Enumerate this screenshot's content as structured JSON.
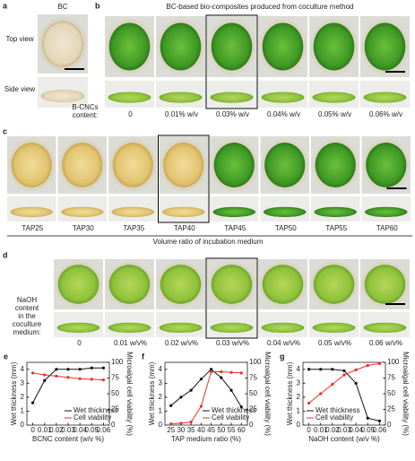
{
  "panel_a": {
    "label": "a",
    "title": "BC",
    "rows": [
      "Top view",
      "Side view"
    ]
  },
  "panel_b": {
    "label": "b",
    "title": "BC-based bio-composites produced from coculture method",
    "row_label": [
      "B-CNCs",
      "content:"
    ],
    "labels": [
      "0",
      "0.01% w/v",
      "0.03% w/v",
      "0.04% w/v",
      "0.05% w/v",
      "0.06% w/v"
    ]
  },
  "panel_c": {
    "label": "c",
    "labels": [
      "TAP25",
      "TAP30",
      "TAP35",
      "TAP40",
      "TAP45",
      "TAP50",
      "TAP55",
      "TAP60"
    ],
    "caption": "Volume ratio of incubation medium"
  },
  "panel_d": {
    "label": "d",
    "row_label": [
      "NaOH",
      "content",
      "in the",
      "coculture",
      "medium:"
    ],
    "labels": [
      "0",
      "0.01 w/v%",
      "0.02 w/v%",
      "0.03 w/v%",
      "0.04 w/v%",
      "0.05 w/v%",
      "0.06 w/v%"
    ]
  },
  "chart_data": [
    {
      "type": "line",
      "label": "e",
      "x_label": "BCNC content (w/v %)",
      "y_label": "Wet thickness (mm)",
      "y2_label": "Microalgal cell viability (%)",
      "x": [
        0,
        0.01,
        0.02,
        0.03,
        0.04,
        0.05,
        0.06
      ],
      "xlim": [
        -0.005,
        0.065
      ],
      "xticks": [
        0,
        0.01,
        0.02,
        0.03,
        0.04,
        0.05,
        0.06
      ],
      "ylim": [
        0,
        4.5
      ],
      "yticks": [
        0,
        1,
        2,
        3,
        4
      ],
      "y2lim": [
        0,
        100
      ],
      "y2ticks": [
        0,
        25,
        50,
        75,
        100
      ],
      "legend": "lower right",
      "series": [
        {
          "name": "Wet thickness",
          "color": "#111111",
          "values": [
            1.6,
            3.2,
            4.0,
            4.0,
            4.0,
            4.1,
            4.1
          ]
        },
        {
          "name": "Cell viability",
          "color": "#e8302a",
          "axis": "y2",
          "values": [
            83,
            80,
            78,
            76,
            74,
            73,
            72
          ]
        }
      ]
    },
    {
      "type": "line",
      "label": "f",
      "x_label": "TAP medium ratio (%)",
      "y_label": "Wet thickness (mm)",
      "y2_label": "Microalgal cell viability (%)",
      "x": [
        25,
        30,
        35,
        40,
        45,
        50,
        55,
        60
      ],
      "xlim": [
        22,
        63
      ],
      "xticks": [
        25,
        30,
        35,
        40,
        45,
        50,
        55,
        60
      ],
      "ylim": [
        0,
        4.5
      ],
      "yticks": [
        0,
        1,
        2,
        3,
        4
      ],
      "y2lim": [
        0,
        100
      ],
      "y2ticks": [
        0,
        25,
        50,
        75,
        100
      ],
      "legend": "lower right",
      "series": [
        {
          "name": "Wet thickness",
          "color": "#111111",
          "values": [
            1.4,
            2.0,
            2.5,
            3.3,
            4.0,
            3.4,
            2.5,
            1.3
          ]
        },
        {
          "name": "Cell viability",
          "color": "#e8302a",
          "axis": "y2",
          "values": [
            2,
            3,
            5,
            30,
            85,
            85,
            84,
            83
          ]
        }
      ]
    },
    {
      "type": "line",
      "label": "g",
      "x_label": "NaOH content (w/v %)",
      "y_label": "Wet thickness (mm)",
      "y2_label": "Microalgal cell viability (%)",
      "x": [
        0,
        0.01,
        0.02,
        0.03,
        0.04,
        0.05,
        0.06
      ],
      "xlim": [
        -0.005,
        0.065
      ],
      "xticks": [
        0,
        0.01,
        0.02,
        0.03,
        0.04,
        0.05,
        0.06
      ],
      "ylim": [
        0,
        4.5
      ],
      "yticks": [
        0,
        1,
        2,
        3,
        4
      ],
      "y2lim": [
        0,
        100
      ],
      "y2ticks": [
        0,
        25,
        50,
        75,
        100
      ],
      "legend": "lower left",
      "series": [
        {
          "name": "Wet thickness",
          "color": "#111111",
          "values": [
            4.0,
            4.0,
            4.0,
            3.9,
            3.0,
            0.5,
            0.3
          ]
        },
        {
          "name": "Cell viability",
          "color": "#e8302a",
          "axis": "y2",
          "values": [
            35,
            50,
            65,
            80,
            88,
            95,
            98
          ]
        }
      ]
    }
  ]
}
